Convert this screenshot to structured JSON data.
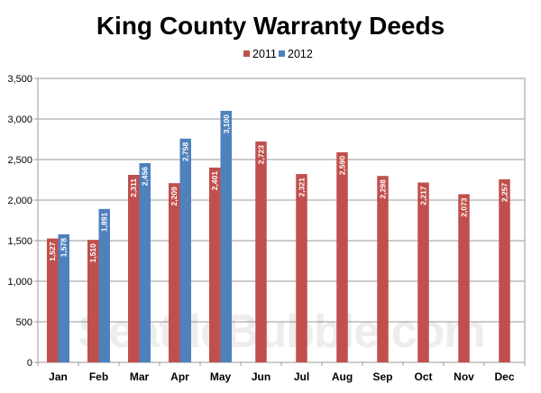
{
  "chart_data": {
    "type": "bar",
    "title": "King County Warranty Deeds",
    "categories": [
      "Jan",
      "Feb",
      "Mar",
      "Apr",
      "May",
      "Jun",
      "Jul",
      "Aug",
      "Sep",
      "Oct",
      "Nov",
      "Dec"
    ],
    "series": [
      {
        "name": "2011",
        "color": "#c0504d",
        "values": [
          1527,
          1510,
          2311,
          2209,
          2401,
          2723,
          2321,
          2590,
          2298,
          2217,
          2073,
          2257
        ]
      },
      {
        "name": "2012",
        "color": "#4f81bd",
        "values": [
          1578,
          1891,
          2456,
          2758,
          3100,
          null,
          null,
          null,
          null,
          null,
          null,
          null
        ]
      }
    ],
    "ylim": [
      0,
      3500
    ],
    "yticks": [
      0,
      500,
      1000,
      1500,
      2000,
      2500,
      3000,
      3500
    ],
    "ytick_labels": [
      "0",
      "500",
      "1,000",
      "1,500",
      "2,000",
      "2,500",
      "3,000",
      "3,500"
    ],
    "data_labels": [
      [
        "1,527",
        "1,510",
        "2,311",
        "2,209",
        "2,401",
        "2,723",
        "2,321",
        "2,590",
        "2,298",
        "2,217",
        "2,073",
        "2,257"
      ],
      [
        "1,578",
        "1,891",
        "2,456",
        "2,758",
        "3,100",
        "",
        "",
        "",
        "",
        "",
        "",
        ""
      ]
    ],
    "legend_position": "top-center",
    "grid": true,
    "watermark": "SeattleBubble.com"
  }
}
